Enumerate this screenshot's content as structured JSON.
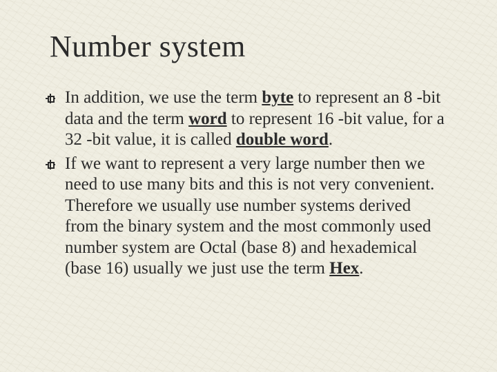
{
  "slide": {
    "title": "Number system",
    "background_color": "#f0eee2",
    "text_color": "#2b2b2b",
    "title_fontsize": 44,
    "body_fontsize": 25,
    "bullets": [
      {
        "runs": [
          {
            "t": "In addition, we use the term "
          },
          {
            "t": "byte",
            "bold": true,
            "underline": true
          },
          {
            "t": " to represent an 8 -bit data and the term "
          },
          {
            "t": "word",
            "bold": true,
            "underline": true
          },
          {
            "t": " to represent 16 -bit value, for a 32 -bit value, it is called "
          },
          {
            "t": "double word",
            "bold": true,
            "underline": true
          },
          {
            "t": "."
          }
        ]
      },
      {
        "runs": [
          {
            "t": "If we want to represent a very large number then we need to use many bits and this is not very convenient. Therefore we usually use number systems derived from the binary system and the most commonly used number system are Octal (base 8) and hexademical (base 16) usually we just use the term "
          },
          {
            "t": "Hex",
            "bold": true,
            "underline": true
          },
          {
            "t": "."
          }
        ]
      }
    ]
  }
}
